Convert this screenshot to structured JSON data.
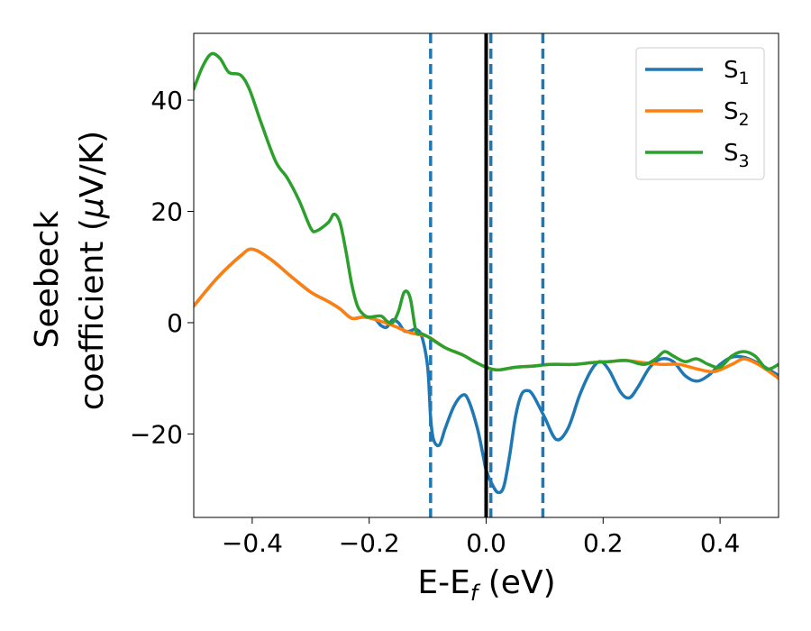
{
  "chart_data": {
    "type": "line",
    "xlabel": {
      "main": "E-E",
      "sub": "f",
      "tail": " (eV)"
    },
    "ylabel": {
      "line1": "Seebeck",
      "line2_prefix": "coefficient  (",
      "mu": "μ",
      "line2_suffix": "V/K)"
    },
    "xlim": [
      -0.5,
      0.5
    ],
    "ylim": [
      -35,
      52
    ],
    "xticks": [
      -0.4,
      -0.2,
      0.0,
      0.2,
      0.4
    ],
    "xtick_labels": [
      "−0.4",
      "−0.2",
      "0.0",
      "0.2",
      "0.4"
    ],
    "yticks": [
      -20,
      0,
      20,
      40
    ],
    "ytick_labels": [
      "−20",
      "0",
      "20",
      "40"
    ],
    "legend_position": "top-right",
    "vlines": [
      {
        "x": 0.0,
        "style": "solid",
        "color": "#000000"
      },
      {
        "x": -0.095,
        "style": "dashed",
        "color": "#1f77b4"
      },
      {
        "x": 0.008,
        "style": "dashed",
        "color": "#1f77b4"
      },
      {
        "x": 0.097,
        "style": "dashed",
        "color": "#1f77b4"
      }
    ],
    "series": [
      {
        "name": "S",
        "sub": "1",
        "color": "#1f77b4",
        "points": [
          [
            -0.5,
            3
          ],
          [
            -0.46,
            8
          ],
          [
            -0.42,
            12
          ],
          [
            -0.4,
            13.2
          ],
          [
            -0.37,
            11.5
          ],
          [
            -0.33,
            8
          ],
          [
            -0.3,
            5.5
          ],
          [
            -0.27,
            3.8
          ],
          [
            -0.25,
            2.5
          ],
          [
            -0.23,
            0.8
          ],
          [
            -0.21,
            1.0
          ],
          [
            -0.19,
            0.6
          ],
          [
            -0.18,
            -0.5
          ],
          [
            -0.17,
            -0.8
          ],
          [
            -0.16,
            0.5
          ],
          [
            -0.15,
            0.0
          ],
          [
            -0.14,
            -1.5
          ],
          [
            -0.13,
            -1.5
          ],
          [
            -0.12,
            -1.2
          ],
          [
            -0.11,
            -2.5
          ],
          [
            -0.1,
            -8
          ],
          [
            -0.095,
            -17
          ],
          [
            -0.09,
            -21
          ],
          [
            -0.08,
            -22
          ],
          [
            -0.07,
            -19
          ],
          [
            -0.055,
            -15
          ],
          [
            -0.04,
            -13
          ],
          [
            -0.03,
            -14
          ],
          [
            -0.015,
            -19
          ],
          [
            -0.005,
            -24
          ],
          [
            0.0,
            -26.5
          ],
          [
            0.01,
            -29
          ],
          [
            0.02,
            -30.5
          ],
          [
            0.03,
            -29.5
          ],
          [
            0.04,
            -24
          ],
          [
            0.05,
            -17
          ],
          [
            0.06,
            -13
          ],
          [
            0.07,
            -12.2
          ],
          [
            0.08,
            -13
          ],
          [
            0.1,
            -17
          ],
          [
            0.12,
            -21
          ],
          [
            0.14,
            -19
          ],
          [
            0.16,
            -13
          ],
          [
            0.18,
            -8.5
          ],
          [
            0.195,
            -7
          ],
          [
            0.21,
            -8.5
          ],
          [
            0.23,
            -12.5
          ],
          [
            0.245,
            -13.5
          ],
          [
            0.26,
            -11.5
          ],
          [
            0.28,
            -8
          ],
          [
            0.3,
            -6.5
          ],
          [
            0.32,
            -7
          ],
          [
            0.34,
            -9.5
          ],
          [
            0.36,
            -10.5
          ],
          [
            0.38,
            -9.5
          ],
          [
            0.4,
            -7.5
          ],
          [
            0.42,
            -6.2
          ],
          [
            0.44,
            -6.2
          ],
          [
            0.46,
            -7
          ],
          [
            0.48,
            -8.2
          ],
          [
            0.5,
            -9.5
          ]
        ]
      },
      {
        "name": "S",
        "sub": "2",
        "color": "#ff7f0e",
        "points": [
          [
            -0.5,
            3
          ],
          [
            -0.46,
            8
          ],
          [
            -0.42,
            12
          ],
          [
            -0.4,
            13.2
          ],
          [
            -0.37,
            11.5
          ],
          [
            -0.33,
            8
          ],
          [
            -0.3,
            5.5
          ],
          [
            -0.27,
            3.8
          ],
          [
            -0.25,
            2.5
          ],
          [
            -0.23,
            0.8
          ],
          [
            -0.21,
            1.0
          ],
          [
            -0.19,
            0.6
          ],
          [
            -0.16,
            -0.5
          ],
          [
            -0.13,
            -1.8
          ],
          [
            -0.1,
            -2.5
          ],
          [
            -0.07,
            -4.5
          ],
          [
            -0.04,
            -5.8
          ],
          [
            -0.02,
            -7
          ],
          [
            0.0,
            -8
          ],
          [
            0.02,
            -8.5
          ],
          [
            0.05,
            -8
          ],
          [
            0.08,
            -7.8
          ],
          [
            0.11,
            -7.5
          ],
          [
            0.15,
            -7.5
          ],
          [
            0.18,
            -7.2
          ],
          [
            0.21,
            -7
          ],
          [
            0.24,
            -6.8
          ],
          [
            0.27,
            -7.2
          ],
          [
            0.3,
            -7.5
          ],
          [
            0.33,
            -7.5
          ],
          [
            0.36,
            -8.3
          ],
          [
            0.39,
            -8.8
          ],
          [
            0.42,
            -7.5
          ],
          [
            0.44,
            -6.5
          ],
          [
            0.46,
            -7.2
          ],
          [
            0.48,
            -8.5
          ],
          [
            0.5,
            -10
          ]
        ]
      },
      {
        "name": "S",
        "sub": "3",
        "color": "#2ca02c",
        "points": [
          [
            -0.5,
            42
          ],
          [
            -0.485,
            46
          ],
          [
            -0.47,
            48.3
          ],
          [
            -0.455,
            47.5
          ],
          [
            -0.44,
            45
          ],
          [
            -0.42,
            44.5
          ],
          [
            -0.405,
            42
          ],
          [
            -0.385,
            36
          ],
          [
            -0.36,
            29
          ],
          [
            -0.34,
            26
          ],
          [
            -0.32,
            22
          ],
          [
            -0.3,
            17
          ],
          [
            -0.29,
            16.5
          ],
          [
            -0.27,
            18
          ],
          [
            -0.26,
            19.5
          ],
          [
            -0.25,
            18
          ],
          [
            -0.24,
            13
          ],
          [
            -0.23,
            7
          ],
          [
            -0.22,
            3
          ],
          [
            -0.21,
            1.5
          ],
          [
            -0.2,
            1
          ],
          [
            -0.18,
            1.2
          ],
          [
            -0.17,
            0.3
          ],
          [
            -0.16,
            0.0
          ],
          [
            -0.15,
            2
          ],
          [
            -0.14,
            5.5
          ],
          [
            -0.13,
            4.5
          ],
          [
            -0.12,
            -1.5
          ],
          [
            -0.11,
            -2
          ],
          [
            -0.1,
            -2.5
          ],
          [
            -0.07,
            -4.5
          ],
          [
            -0.04,
            -5.8
          ],
          [
            -0.02,
            -7
          ],
          [
            0.0,
            -8
          ],
          [
            0.02,
            -8.5
          ],
          [
            0.05,
            -8
          ],
          [
            0.08,
            -7.8
          ],
          [
            0.11,
            -7.5
          ],
          [
            0.15,
            -7.5
          ],
          [
            0.18,
            -7.2
          ],
          [
            0.21,
            -7
          ],
          [
            0.24,
            -6.8
          ],
          [
            0.27,
            -7.5
          ],
          [
            0.29,
            -6.5
          ],
          [
            0.305,
            -5.2
          ],
          [
            0.32,
            -6
          ],
          [
            0.34,
            -7
          ],
          [
            0.36,
            -6.5
          ],
          [
            0.38,
            -7.5
          ],
          [
            0.4,
            -8
          ],
          [
            0.42,
            -6
          ],
          [
            0.44,
            -5.2
          ],
          [
            0.46,
            -6
          ],
          [
            0.48,
            -8.3
          ],
          [
            0.5,
            -7.5
          ]
        ]
      }
    ]
  }
}
